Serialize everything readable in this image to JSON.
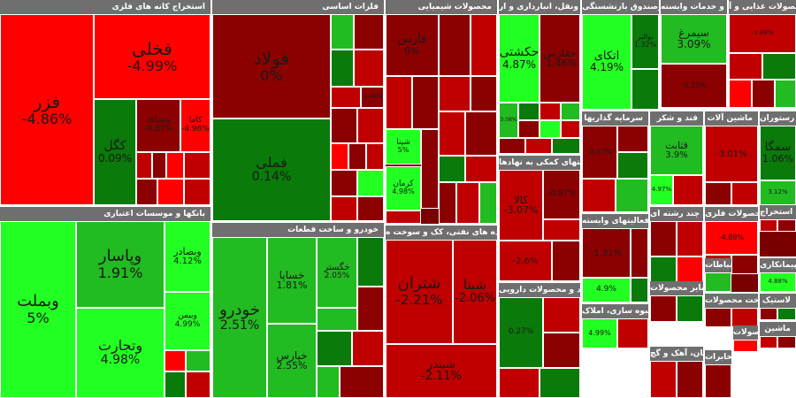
{
  "chart_data": {
    "type": "treemap",
    "colors": {
      "up_strong": "#22ff22",
      "up_mid": "#22bb22",
      "up_weak": "#0a7a0a",
      "dn_weak": "#8b0000",
      "dn_mid": "#c00000",
      "dn_strong": "#ff0000"
    },
    "sectors": [
      {
        "title": "استخراج کانه های فلزی",
        "stocks": [
          {
            "name": "فزر",
            "change": -4.86
          },
          {
            "name": "فخلی",
            "change": -4.99
          },
          {
            "name": "کگل",
            "change": 0.09
          },
          {
            "name": "وبشاهد",
            "change": -0.87
          },
          {
            "name": "کاما",
            "change": -4.98
          }
        ]
      },
      {
        "title": "فلزات اساسی",
        "stocks": [
          {
            "name": "فولاد",
            "change": 0
          },
          {
            "name": "فملی",
            "change": 0.14
          },
          {
            "name": "",
            "change": -1.44
          }
        ]
      },
      {
        "title": "محصولات شیمیایی",
        "stocks": [
          {
            "name": "فارس",
            "change": 0
          },
          {
            "name": "شپنا",
            "change": 5
          },
          {
            "name": "کرمان",
            "change": 4.98
          }
        ]
      },
      {
        "title": "حمل ونقل، انبارداری و ار...",
        "stocks": [
          {
            "name": "حکشتی",
            "change": 4.87
          },
          {
            "name": "حفارس",
            "change": -1.46
          },
          {
            "name": "",
            "change": 3.08
          }
        ]
      },
      {
        "title": "بیمه وصندوق بازنشستگی",
        "stocks": [
          {
            "name": "اتکای",
            "change": 4.19
          },
          {
            "name": "بوالبر",
            "change": 1.32
          }
        ]
      },
      {
        "title": "زراعت و خدمات وابسته",
        "stocks": [
          {
            "name": "سیمرغ",
            "change": 3.09
          },
          {
            "name": "",
            "change": -0.25
          }
        ]
      },
      {
        "title": "محصولات غذایی و آ...",
        "stocks": [
          {
            "name": "",
            "change": -1.88
          }
        ]
      },
      {
        "title": "بانکها و موسسات اعتباری",
        "stocks": [
          {
            "name": "وبملت",
            "change": 5
          },
          {
            "name": "وپاسار",
            "change": 1.91
          },
          {
            "name": "وتجارت",
            "change": 4.98
          },
          {
            "name": "وبصادر",
            "change": 4.12
          },
          {
            "name": "وبیمن",
            "change": 4.99
          }
        ]
      },
      {
        "title": "خودرو و ساخت قطعات",
        "stocks": [
          {
            "name": "خودرو",
            "change": 2.51
          },
          {
            "name": "خساپا",
            "change": 1.81
          },
          {
            "name": "خپارس",
            "change": 2.55
          },
          {
            "name": "خگستر",
            "change": 2.05
          }
        ]
      },
      {
        "title": "فراورده های نفتی، کک و سوخت ه...",
        "stocks": [
          {
            "name": "شتران",
            "change": -2.21
          },
          {
            "name": "شبنا",
            "change": -2.06
          },
          {
            "name": "شبندر",
            "change": -2.11
          }
        ]
      },
      {
        "title": "سرمایه گذاریها",
        "stocks": [
          {
            "name": "",
            "change": -0.67
          }
        ]
      },
      {
        "title": "فعالیتهای کمکی به نهادها...",
        "stocks": [
          {
            "name": "کالا",
            "change": -3.07
          },
          {
            "name": "",
            "change": -0.87
          },
          {
            "name": "",
            "change": -2.6
          }
        ]
      },
      {
        "title": "مواد و محصولات دارویی",
        "stocks": [
          {
            "name": "",
            "change": 0.27
          }
        ]
      },
      {
        "title": "قند و شکر",
        "stocks": [
          {
            "name": "قثابت",
            "change": 3.9
          },
          {
            "name": "",
            "change": 4.97
          }
        ]
      },
      {
        "title": "ماشین آلات",
        "stocks": [
          {
            "name": "",
            "change": -3.01
          }
        ]
      },
      {
        "title": "هتل و رستوران",
        "stocks": [
          {
            "name": "سمگا",
            "change": 1.06
          },
          {
            "name": "",
            "change": 3.12
          }
        ]
      },
      {
        "title": "رایانه و فعالیتهای وابسته",
        "stocks": [
          {
            "name": "",
            "change": -1.31
          },
          {
            "name": "",
            "change": 4.9
          }
        ]
      },
      {
        "title": "انبوه سازی، املاک",
        "stocks": [
          {
            "name": "",
            "change": 4.99
          }
        ]
      },
      {
        "title": "شرکتهای چند رشته ای",
        "stocks": []
      },
      {
        "title": "ساخت محصولات فلزی",
        "stocks": [
          {
            "name": "",
            "change": -4.88
          }
        ]
      },
      {
        "title": "اطلاعات و ارتباطات",
        "stocks": []
      },
      {
        "title": "پیمانکاری",
        "stocks": [
          {
            "name": "",
            "change": 4.88
          }
        ]
      },
      {
        "title": "سایر محصولات",
        "stocks": []
      },
      {
        "title": "سیمان، آهک و گچ",
        "stocks": []
      },
      {
        "title": "ساخت محصولات",
        "stocks": []
      },
      {
        "title": "استخراج",
        "stocks": []
      },
      {
        "title": "محصولات",
        "stocks": []
      },
      {
        "title": "لاستیک",
        "stocks": []
      },
      {
        "title": "ماشین",
        "stocks": []
      },
      {
        "title": "مخابرات",
        "stocks": []
      }
    ]
  }
}
